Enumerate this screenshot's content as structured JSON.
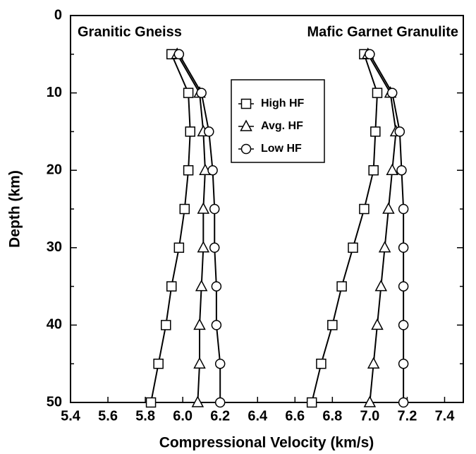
{
  "chart_data": {
    "type": "line",
    "x_label": "Compressional Velocity (km/s)",
    "y_label": "Depth (km)",
    "annotations": [
      "Granitic Gneiss",
      "Mafic Garnet Granulite"
    ],
    "y": [
      5,
      10,
      15,
      20,
      25,
      30,
      35,
      40,
      45,
      50
    ],
    "series": [
      {
        "name": "High HF",
        "marker": "square",
        "color": "#000000",
        "values": [
          [
            5.94,
            6.03,
            6.04,
            6.03,
            6.01,
            5.98,
            5.94,
            5.91,
            5.87,
            5.83
          ],
          [
            6.97,
            7.04,
            7.03,
            7.02,
            6.97,
            6.91,
            6.85,
            6.8,
            6.74,
            6.69
          ]
        ]
      },
      {
        "name": "Avg. HF",
        "marker": "triangle",
        "color": "#000000",
        "values": [
          [
            5.97,
            6.09,
            6.11,
            6.12,
            6.11,
            6.11,
            6.1,
            6.09,
            6.09,
            6.08
          ],
          [
            6.99,
            7.11,
            7.14,
            7.12,
            7.1,
            7.08,
            7.06,
            7.04,
            7.02,
            7.0
          ]
        ]
      },
      {
        "name": "Low HF",
        "marker": "circle",
        "color": "#000000",
        "values": [
          [
            5.98,
            6.1,
            6.14,
            6.16,
            6.17,
            6.17,
            6.18,
            6.18,
            6.2,
            6.2
          ],
          [
            7.0,
            7.12,
            7.16,
            7.17,
            7.18,
            7.18,
            7.18,
            7.18,
            7.18,
            7.18
          ]
        ]
      }
    ],
    "xlim": [
      5.4,
      7.5
    ],
    "xticks": [
      5.4,
      5.6,
      5.8,
      {
        "value": 6,
        "label": "6.0"
      },
      6.2,
      6.4,
      6.6,
      6.8,
      {
        "value": 7,
        "label": "7.0"
      },
      7.2,
      7.4
    ],
    "ylim": [
      0,
      50
    ],
    "yticks": [
      0,
      10,
      20,
      30,
      40,
      50
    ],
    "y_minor_ticks": [
      5,
      15,
      25,
      35,
      45
    ],
    "y_inverted": true,
    "grid": false,
    "legend": "top-center"
  }
}
